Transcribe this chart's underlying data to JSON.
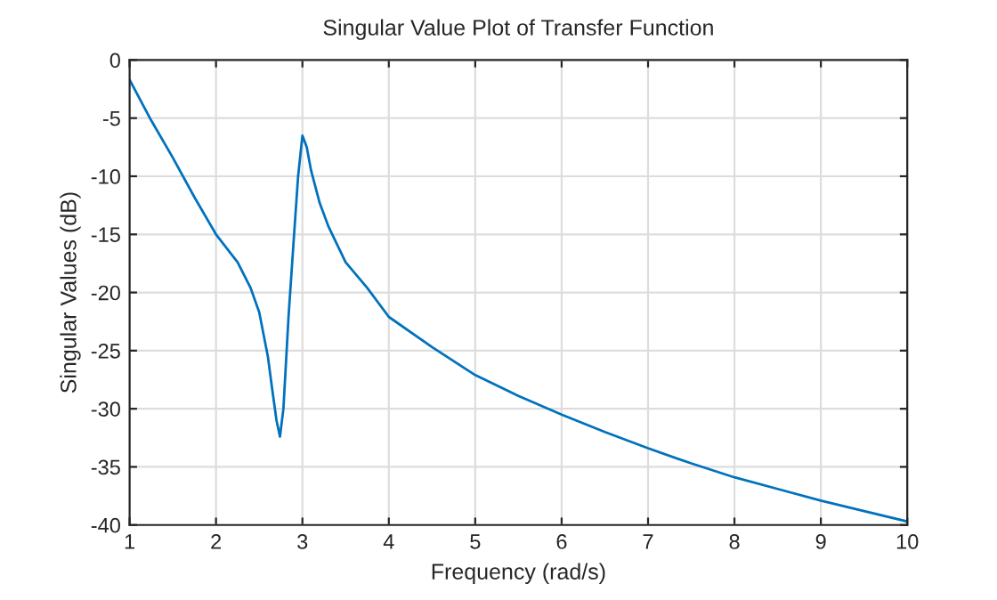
{
  "chart_data": {
    "type": "line",
    "title": "Singular Value Plot of Transfer Function",
    "xlabel": "Frequency (rad/s)",
    "ylabel": "Singular Values (dB)",
    "series": [
      {
        "color": "#0072bd",
        "x": [
          1,
          1.25,
          1.5,
          1.75,
          2,
          2.25,
          2.4,
          2.5,
          2.6,
          2.65,
          2.7,
          2.74,
          2.78,
          2.84,
          2.9,
          2.95,
          3.0,
          3.05,
          3.1,
          3.2,
          3.3,
          3.5,
          3.75,
          4,
          4.5,
          5,
          5.5,
          6,
          6.5,
          7,
          7.5,
          8,
          8.5,
          9,
          9.5,
          10
        ],
        "values": [
          -1.7,
          -5.2,
          -8.4,
          -11.8,
          -15,
          -17.4,
          -19.6,
          -21.7,
          -25.5,
          -28.3,
          -31,
          -32.4,
          -30,
          -22,
          -15.4,
          -10,
          -6.5,
          -7.5,
          -9.5,
          -12.3,
          -14.3,
          -17.4,
          -19.6,
          -22.1,
          -24.7,
          -27.1,
          -28.9,
          -30.5,
          -32,
          -33.4,
          -34.7,
          -35.9,
          -36.9,
          -37.9,
          -38.8,
          -39.7
        ]
      }
    ],
    "xlim": [
      1,
      10
    ],
    "ylim": [
      -40,
      0
    ],
    "xticks": [
      1,
      2,
      3,
      4,
      5,
      6,
      7,
      8,
      9,
      10
    ],
    "yticks": [
      -40,
      -35,
      -30,
      -25,
      -20,
      -15,
      -10,
      -5,
      0
    ],
    "grid": true,
    "marker": "none",
    "line_style": "solid"
  }
}
